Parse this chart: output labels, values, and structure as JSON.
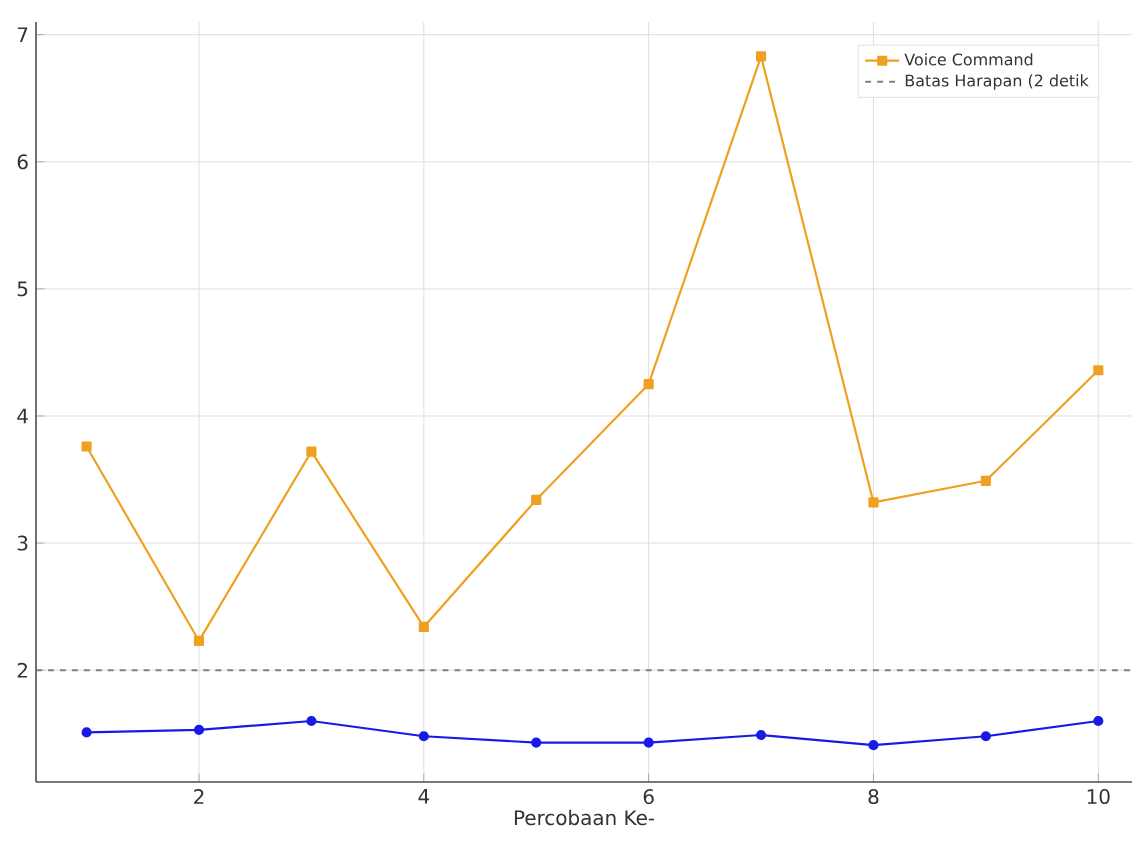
{
  "chart_data": {
    "type": "line",
    "xlabel": "Percobaan Ke-",
    "x": [
      1,
      2,
      3,
      4,
      5,
      6,
      7,
      8,
      9,
      10
    ],
    "series": [
      {
        "color": "#1a1ae6",
        "marker": "circle",
        "values": [
          1.51,
          1.53,
          1.6,
          1.48,
          1.43,
          1.43,
          1.49,
          1.41,
          1.48,
          1.6
        ]
      },
      {
        "name": "Voice Command",
        "color": "#f0a020",
        "marker": "square",
        "values": [
          3.76,
          2.23,
          3.72,
          2.34,
          3.34,
          4.25,
          6.83,
          3.32,
          3.49,
          4.36
        ]
      }
    ],
    "ref_lines": [
      {
        "axis": "y",
        "value": 2,
        "label": "Batas Harapan (2 detik",
        "color": "#808080",
        "line_style": "dashed"
      }
    ],
    "xlim": [
      0.55,
      10.3
    ],
    "ylim": [
      1.12,
      7.1
    ],
    "xticks": [
      2,
      4,
      6,
      8,
      10
    ],
    "yticks": [
      2,
      3,
      4,
      5,
      6,
      7
    ],
    "grid": true,
    "legend": "top right",
    "line_style": "solid"
  }
}
